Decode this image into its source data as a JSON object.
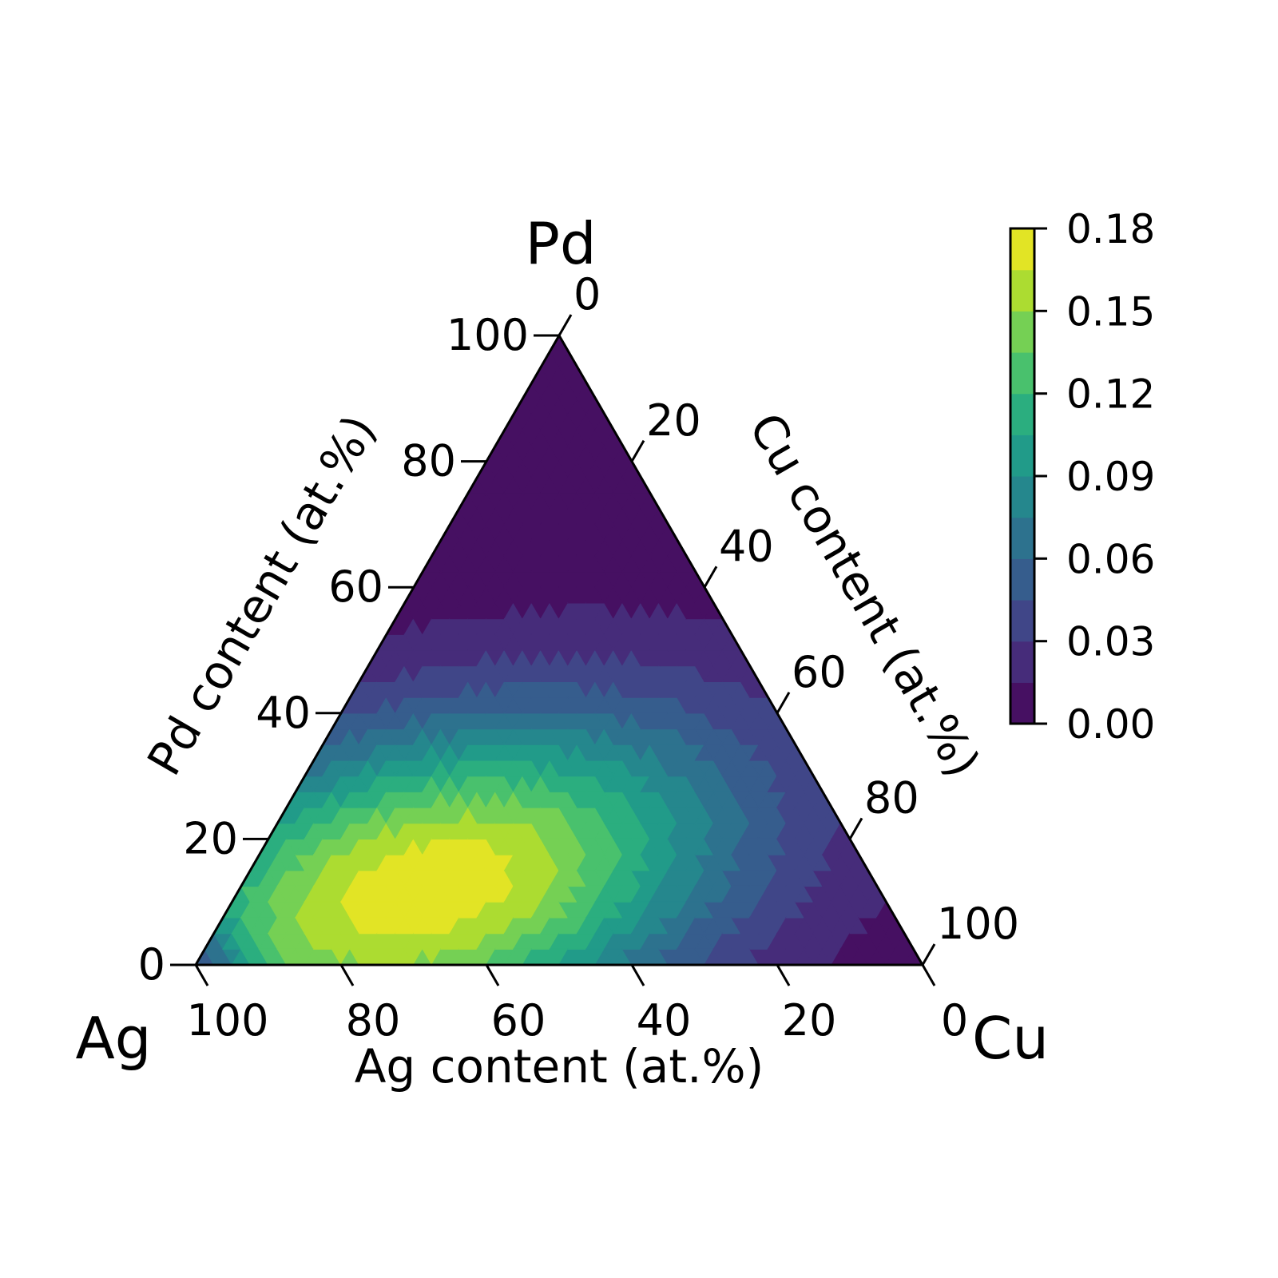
{
  "chart_data": {
    "type": "ternary-contour",
    "title": "",
    "corners": {
      "bottom_left": "Ag",
      "top": "Pd",
      "bottom_right": "Cu"
    },
    "axes": {
      "bottom": {
        "label": "Ag content (at.%)",
        "ticks": [
          "100",
          "80",
          "60",
          "40",
          "20",
          "0"
        ]
      },
      "left": {
        "label": "Pd content (at.%)",
        "ticks": [
          "0",
          "20",
          "40",
          "60",
          "80",
          "100"
        ]
      },
      "right": {
        "label": "Cu content (at.%)",
        "ticks": [
          "0",
          "20",
          "40",
          "60",
          "80",
          "100"
        ]
      }
    },
    "range": [
      0,
      100
    ],
    "grid": false,
    "colormap": "viridis",
    "contour_levels": [
      0.0,
      0.015,
      0.03,
      0.045,
      0.06,
      0.075,
      0.09,
      0.105,
      0.12,
      0.135,
      0.15,
      0.165,
      0.18
    ],
    "colorbar": {
      "min": 0.0,
      "max": 0.18,
      "ticks": [
        "0.00",
        "0.03",
        "0.06",
        "0.09",
        "0.12",
        "0.15",
        "0.18"
      ],
      "placement": "right"
    },
    "peak": {
      "Ag": 62,
      "Cu": 26,
      "Pd": 12,
      "value": 0.175
    },
    "field_description_points": [
      {
        "Ag": 62,
        "Cu": 26,
        "Pd": 12,
        "value": 0.175
      },
      {
        "Ag": 70,
        "Cu": 15,
        "Pd": 15,
        "value": 0.16
      },
      {
        "Ag": 50,
        "Cu": 30,
        "Pd": 20,
        "value": 0.14
      },
      {
        "Ag": 40,
        "Cu": 30,
        "Pd": 30,
        "value": 0.09
      },
      {
        "Ag": 20,
        "Cu": 40,
        "Pd": 40,
        "value": 0.05
      },
      {
        "Ag": 20,
        "Cu": 20,
        "Pd": 60,
        "value": 0.03
      },
      {
        "Ag": 10,
        "Cu": 10,
        "Pd": 80,
        "value": 0.005
      },
      {
        "Ag": 5,
        "Cu": 90,
        "Pd": 5,
        "value": 0.01
      },
      {
        "Ag": 95,
        "Cu": 3,
        "Pd": 2,
        "value": 0.02
      }
    ]
  }
}
